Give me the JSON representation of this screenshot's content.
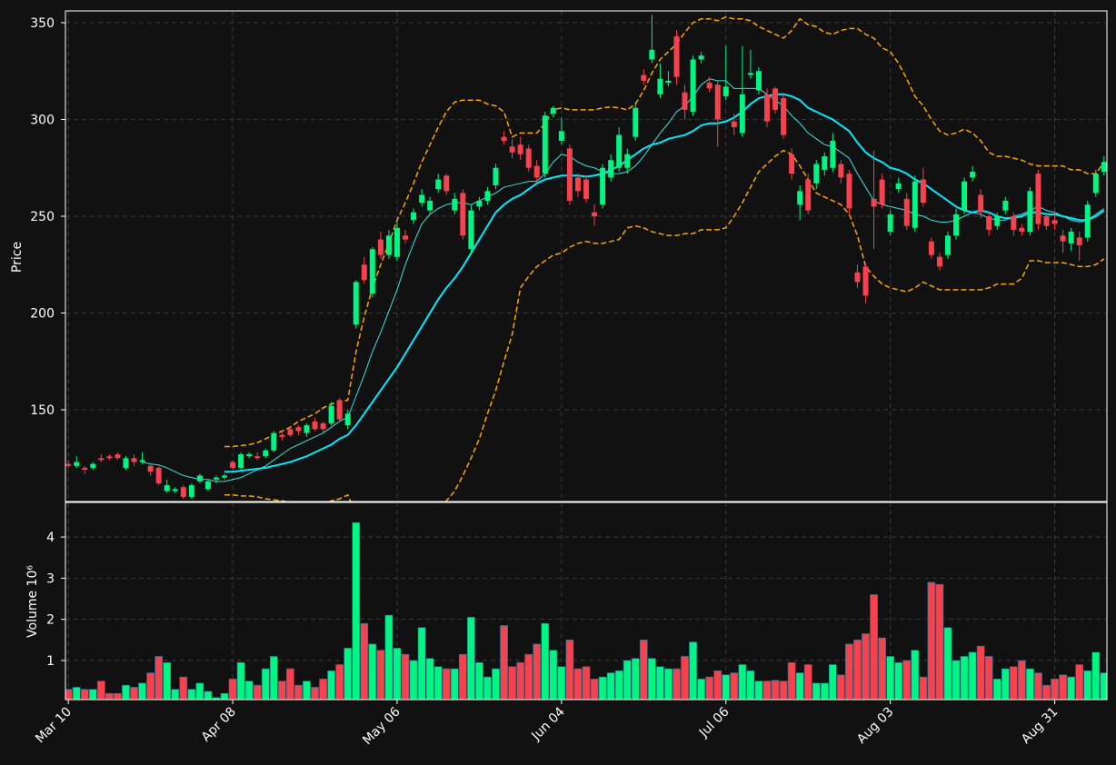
{
  "chart_data": {
    "type": "candlestick",
    "categories": [
      "Mar 10",
      null,
      null,
      null,
      null,
      null,
      null,
      null,
      null,
      null,
      null,
      null,
      null,
      null,
      null,
      null,
      null,
      null,
      null,
      null,
      "Apr 08",
      null,
      null,
      null,
      null,
      null,
      null,
      null,
      null,
      null,
      null,
      null,
      null,
      null,
      null,
      null,
      null,
      null,
      null,
      null,
      "May 06",
      null,
      null,
      null,
      null,
      null,
      null,
      null,
      null,
      null,
      null,
      null,
      null,
      null,
      null,
      null,
      null,
      null,
      null,
      null,
      "Jun 04",
      null,
      null,
      null,
      null,
      null,
      null,
      null,
      null,
      null,
      null,
      null,
      null,
      null,
      null,
      null,
      null,
      null,
      null,
      null,
      "Jul 06",
      null,
      null,
      null,
      null,
      null,
      null,
      null,
      null,
      null,
      null,
      null,
      null,
      null,
      null,
      null,
      null,
      null,
      null,
      null,
      "Aug 03",
      null,
      null,
      null,
      null,
      null,
      null,
      null,
      null,
      null,
      null,
      null,
      null,
      null,
      null,
      null,
      null,
      null,
      null,
      null,
      "Aug 31",
      null,
      null,
      null,
      null,
      null,
      null
    ],
    "open": [
      122,
      121,
      120,
      120,
      125,
      126,
      127,
      120,
      125,
      123,
      121,
      120,
      108,
      108,
      110,
      105,
      113,
      109,
      114,
      115,
      123,
      120,
      126,
      126,
      126,
      129,
      137,
      140,
      141,
      138,
      144,
      143,
      143,
      155,
      142,
      194,
      225,
      210,
      238,
      230,
      229,
      240,
      248,
      257,
      253,
      264,
      271,
      253,
      262,
      233,
      255,
      258,
      266,
      291,
      286,
      287,
      285,
      276,
      272,
      303,
      289,
      285,
      270,
      269,
      252,
      256,
      270,
      275,
      275,
      291,
      323,
      331,
      313,
      319,
      343,
      314,
      304,
      331,
      319,
      318,
      312,
      299,
      293,
      323,
      315,
      313,
      316,
      311,
      282,
      256,
      269,
      267,
      274,
      275,
      277,
      272,
      221,
      224,
      259,
      269,
      242,
      264,
      259,
      244,
      269,
      237,
      229,
      230,
      240,
      253,
      270,
      261,
      250,
      245,
      253,
      250,
      244,
      242,
      272,
      250,
      248,
      240,
      236,
      239,
      239,
      262,
      273
    ],
    "high": [
      124,
      126,
      121,
      123,
      127,
      127,
      128,
      126,
      127,
      128,
      122,
      121,
      114,
      110,
      111,
      112,
      117,
      114,
      116,
      117,
      124,
      128,
      128,
      128,
      130,
      139,
      139,
      141,
      142,
      143,
      146,
      144,
      154,
      156,
      150,
      217,
      229,
      234,
      242,
      243,
      247,
      243,
      254,
      264,
      260,
      272,
      272,
      262,
      264,
      256,
      260,
      265,
      277,
      294,
      290,
      291,
      287,
      279,
      304,
      307,
      301,
      287,
      272,
      271,
      256,
      277,
      282,
      296,
      285,
      309,
      326,
      354,
      329,
      325,
      346,
      318,
      333,
      335,
      322,
      320,
      338,
      303,
      338,
      336,
      327,
      316,
      317,
      313,
      285,
      266,
      272,
      279,
      283,
      293,
      279,
      274,
      225,
      226,
      284,
      272,
      253,
      270,
      262,
      271,
      275,
      239,
      231,
      242,
      254,
      270,
      276,
      264,
      252,
      252,
      260,
      252,
      246,
      265,
      274,
      252,
      251,
      243,
      244,
      242,
      258,
      274,
      281
    ],
    "low": [
      120,
      120,
      117,
      119,
      123,
      124,
      124,
      119,
      121,
      122,
      116,
      111,
      107,
      107,
      104,
      104,
      112,
      108,
      112,
      114,
      119,
      119,
      125,
      124,
      125,
      128,
      134,
      136,
      137,
      136,
      139,
      138,
      142,
      144,
      140,
      192,
      215,
      208,
      228,
      228,
      227,
      236,
      246,
      255,
      251,
      262,
      261,
      251,
      238,
      230,
      253,
      256,
      264,
      287,
      280,
      279,
      273,
      268,
      270,
      301,
      287,
      256,
      260,
      257,
      245,
      254,
      268,
      273,
      272,
      289,
      318,
      329,
      311,
      317,
      318,
      300,
      302,
      329,
      314,
      286,
      310,
      292,
      291,
      321,
      313,
      296,
      303,
      290,
      269,
      248,
      251,
      264,
      271,
      273,
      267,
      250,
      213,
      205,
      233,
      254,
      240,
      262,
      243,
      242,
      255,
      228,
      222,
      228,
      238,
      251,
      268,
      249,
      240,
      243,
      251,
      240,
      240,
      240,
      243,
      243,
      243,
      231,
      232,
      227,
      237,
      260,
      271
    ],
    "close": [
      121,
      123,
      119,
      122,
      124,
      125,
      125,
      125,
      123,
      124,
      118,
      112,
      111,
      109,
      105,
      111,
      116,
      113,
      115,
      116,
      120,
      127,
      127,
      125,
      129,
      138,
      136,
      137,
      139,
      142,
      140,
      140,
      152,
      145,
      148,
      216,
      217,
      233,
      230,
      240,
      244,
      238,
      252,
      261,
      258,
      269,
      263,
      259,
      240,
      253,
      258,
      263,
      275,
      289,
      283,
      282,
      275,
      270,
      302,
      306,
      294,
      258,
      263,
      259,
      250,
      275,
      279,
      292,
      282,
      306,
      320,
      336,
      321,
      320,
      322,
      305,
      331,
      333,
      316,
      300,
      317,
      296,
      313,
      324,
      325,
      299,
      305,
      292,
      272,
      263,
      253,
      277,
      281,
      289,
      270,
      254,
      216,
      209,
      255,
      256,
      251,
      267,
      245,
      268,
      257,
      230,
      224,
      240,
      251,
      268,
      273,
      252,
      243,
      250,
      258,
      243,
      242,
      263,
      246,
      245,
      246,
      237,
      242,
      235,
      256,
      272,
      278
    ],
    "up_color": "#00f583",
    "down_color": "#f5424e",
    "ylabel": "Price",
    "ylim": [
      102.6,
      356.1
    ],
    "yticks": [
      150,
      200,
      250,
      300,
      350
    ],
    "overlays": [
      {
        "color": "#3fe0dc",
        "linewidth": 1,
        "dashed": false,
        "values": [
          null,
          null,
          null,
          null,
          null,
          null,
          null,
          null,
          null,
          123,
          122,
          121.5,
          120,
          118,
          116,
          115,
          114,
          114,
          113,
          113,
          114,
          115,
          117,
          119,
          121,
          124,
          127,
          130,
          132,
          134,
          136,
          138,
          141,
          144,
          146,
          157,
          168,
          180,
          190,
          201,
          212,
          225,
          236,
          246,
          251,
          254,
          256,
          257,
          257,
          256,
          258,
          260,
          262,
          265,
          266,
          267,
          268,
          268,
          272,
          278,
          282,
          281,
          278,
          276,
          275,
          273,
          272,
          272,
          273,
          276,
          281,
          287,
          293,
          298,
          304,
          307,
          312,
          318,
          321,
          320,
          320,
          316,
          316,
          316,
          316,
          313,
          310,
          307,
          302,
          298,
          293,
          290,
          287,
          286,
          283,
          280,
          272,
          265,
          258,
          256,
          255,
          254,
          253,
          251,
          250,
          248,
          247,
          247,
          248,
          250,
          252,
          251,
          249,
          248,
          248,
          250,
          251,
          253,
          255,
          253,
          252,
          250,
          248,
          247,
          248,
          251,
          254
        ]
      },
      {
        "color": "#00eaff",
        "linewidth": 2,
        "dashed": false,
        "values": [
          null,
          null,
          null,
          null,
          null,
          null,
          null,
          null,
          null,
          null,
          null,
          null,
          null,
          null,
          null,
          null,
          null,
          null,
          null,
          118,
          118,
          118.5,
          119,
          119.5,
          120,
          121,
          122,
          123,
          124.5,
          126,
          128,
          130,
          132,
          135,
          137,
          142,
          148,
          154,
          160,
          166,
          172,
          179,
          186,
          193,
          200,
          207,
          213,
          218,
          224,
          231,
          238,
          245,
          252,
          256,
          259,
          261,
          264,
          267,
          269,
          270,
          271,
          271,
          271,
          270.5,
          271,
          272,
          274,
          276,
          279,
          282,
          285,
          287,
          288,
          290,
          291,
          292,
          294,
          297,
          298,
          298,
          299,
          301,
          304,
          308,
          311,
          312,
          313,
          313,
          312,
          310,
          306,
          304,
          302,
          300,
          297,
          294,
          288,
          283,
          280,
          278,
          275,
          274,
          272,
          269,
          267,
          264,
          261,
          258,
          255,
          253,
          252,
          253,
          252,
          250,
          249,
          249,
          250,
          252,
          252,
          251,
          251,
          250,
          249,
          248,
          248,
          250,
          253
        ]
      },
      {
        "color": "#ffa500",
        "linewidth": 1.5,
        "dashed": true,
        "values": [
          null,
          null,
          null,
          null,
          null,
          null,
          null,
          null,
          null,
          null,
          null,
          null,
          null,
          null,
          null,
          null,
          null,
          null,
          null,
          131,
          131,
          131.5,
          132,
          133,
          135,
          137,
          139,
          141,
          144,
          146,
          148,
          151,
          153,
          154,
          155,
          180,
          198,
          213,
          225,
          236,
          248,
          257,
          267,
          278,
          287,
          296,
          304,
          309,
          310,
          310,
          310,
          308,
          307,
          304,
          291,
          293,
          293,
          293,
          298,
          305,
          306,
          305,
          305,
          305,
          305,
          306,
          306.5,
          306,
          305,
          308,
          315,
          324,
          331,
          335,
          339,
          345,
          350,
          352,
          352,
          351,
          353,
          352,
          352,
          351,
          348,
          346,
          344,
          342,
          346,
          352,
          349,
          348,
          345,
          344,
          346,
          347,
          347,
          344,
          342,
          337,
          335,
          329,
          321,
          312,
          307,
          300,
          294,
          292,
          293,
          295,
          293,
          289,
          283,
          281,
          281,
          280,
          279,
          277,
          276,
          276,
          276,
          276,
          274,
          274,
          272,
          272,
          278
        ]
      },
      {
        "color": "#ffa500",
        "linewidth": 1.5,
        "dashed": true,
        "values": [
          null,
          null,
          null,
          null,
          null,
          null,
          null,
          null,
          null,
          null,
          null,
          null,
          null,
          null,
          null,
          null,
          null,
          null,
          null,
          106,
          106,
          105.5,
          105.5,
          105,
          104,
          103.5,
          103,
          102,
          101,
          100,
          100,
          101,
          103,
          104,
          106,
          96,
          90,
          85,
          80,
          76,
          72,
          71,
          72,
          76,
          82,
          92,
          103,
          108,
          116,
          125,
          135,
          148,
          160,
          175,
          189,
          213,
          219,
          224,
          227,
          230,
          231,
          234,
          236,
          237,
          236,
          236,
          237,
          238,
          244,
          245,
          244,
          242,
          241,
          240,
          240,
          241,
          241,
          243,
          243,
          243,
          244,
          250,
          257,
          265,
          273,
          277,
          281,
          284,
          282,
          276,
          269,
          262,
          260,
          258,
          256,
          251,
          240,
          224,
          219,
          215,
          213,
          212,
          211,
          213,
          216,
          214,
          212,
          212,
          212,
          212,
          212,
          212,
          213,
          215,
          215,
          215,
          218,
          227,
          227,
          226,
          226,
          226,
          225,
          224,
          224,
          225,
          228
        ]
      }
    ],
    "volume": {
      "ylabel": "Volume  10⁶",
      "ylim": [
        0.05,
        4.84
      ],
      "yticks": [
        1,
        2,
        3,
        4
      ],
      "values": [
        0.3,
        0.35,
        0.3,
        0.3,
        0.5,
        0.2,
        0.2,
        0.4,
        0.35,
        0.45,
        0.7,
        1.1,
        0.95,
        0.3,
        0.6,
        0.3,
        0.45,
        0.25,
        0.1,
        0.2,
        0.55,
        0.95,
        0.5,
        0.4,
        0.8,
        1.1,
        0.5,
        0.8,
        0.4,
        0.5,
        0.35,
        0.55,
        0.75,
        0.9,
        1.3,
        4.35,
        1.9,
        1.4,
        1.25,
        2.1,
        1.3,
        1.15,
        1.0,
        1.8,
        1.05,
        0.85,
        0.8,
        0.8,
        1.15,
        2.05,
        0.95,
        0.6,
        0.8,
        1.85,
        0.85,
        0.95,
        1.15,
        1.4,
        1.9,
        1.25,
        0.85,
        1.5,
        0.8,
        0.85,
        0.55,
        0.6,
        0.7,
        0.75,
        1.0,
        1.05,
        1.5,
        1.05,
        0.85,
        0.8,
        0.8,
        1.1,
        1.45,
        0.55,
        0.6,
        0.75,
        0.65,
        0.7,
        0.9,
        0.75,
        0.5,
        0.5,
        0.52,
        0.5,
        0.95,
        0.7,
        0.9,
        0.45,
        0.45,
        0.9,
        0.65,
        1.4,
        1.5,
        1.65,
        2.6,
        1.55,
        1.1,
        0.95,
        1.0,
        1.25,
        0.6,
        2.9,
        2.85,
        1.8,
        1.0,
        1.1,
        1.2,
        1.35,
        1.1,
        0.55,
        0.8,
        0.85,
        1.0,
        0.8,
        0.7,
        0.4,
        0.55,
        0.65,
        0.6,
        0.9,
        0.75,
        1.2,
        0.7
      ]
    },
    "grid": true
  }
}
